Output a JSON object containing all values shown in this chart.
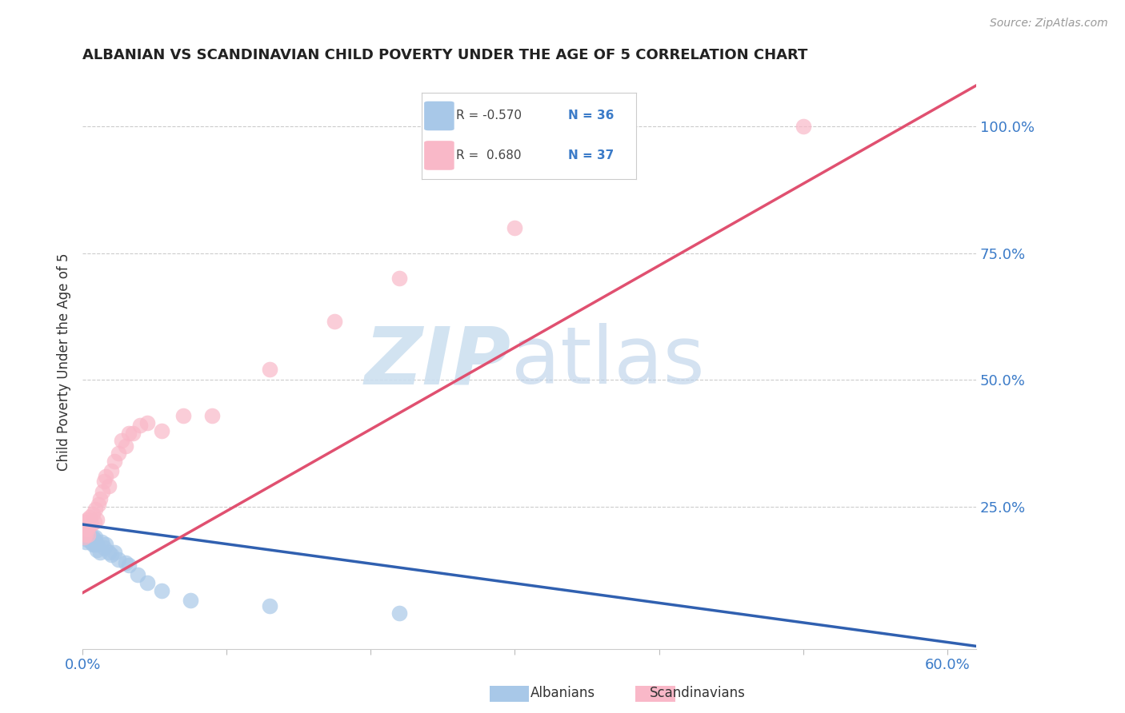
{
  "title": "ALBANIAN VS SCANDINAVIAN CHILD POVERTY UNDER THE AGE OF 5 CORRELATION CHART",
  "source": "Source: ZipAtlas.com",
  "ylabel": "Child Poverty Under the Age of 5",
  "albanian_color": "#a8c8e8",
  "scandinavian_color": "#f9b8c8",
  "albanian_line_color": "#3060b0",
  "scandinavian_line_color": "#e05070",
  "background_color": "#ffffff",
  "grid_color": "#cccccc",
  "xlim": [
    0.0,
    0.62
  ],
  "ylim": [
    -0.03,
    1.1
  ],
  "albanian_x": [
    0.001,
    0.001,
    0.002,
    0.002,
    0.003,
    0.003,
    0.004,
    0.004,
    0.005,
    0.005,
    0.006,
    0.006,
    0.007,
    0.007,
    0.008,
    0.008,
    0.009,
    0.009,
    0.01,
    0.01,
    0.012,
    0.013,
    0.015,
    0.016,
    0.018,
    0.02,
    0.022,
    0.025,
    0.03,
    0.032,
    0.038,
    0.045,
    0.055,
    0.075,
    0.13,
    0.22
  ],
  "albanian_y": [
    0.195,
    0.205,
    0.18,
    0.2,
    0.195,
    0.185,
    0.19,
    0.2,
    0.19,
    0.185,
    0.185,
    0.18,
    0.19,
    0.175,
    0.185,
    0.175,
    0.18,
    0.19,
    0.175,
    0.165,
    0.16,
    0.18,
    0.17,
    0.175,
    0.16,
    0.155,
    0.16,
    0.145,
    0.14,
    0.135,
    0.115,
    0.1,
    0.085,
    0.065,
    0.055,
    0.04
  ],
  "scandinavian_x": [
    0.001,
    0.001,
    0.002,
    0.002,
    0.003,
    0.003,
    0.004,
    0.004,
    0.005,
    0.006,
    0.007,
    0.008,
    0.009,
    0.01,
    0.011,
    0.012,
    0.014,
    0.015,
    0.016,
    0.018,
    0.02,
    0.022,
    0.025,
    0.027,
    0.03,
    0.032,
    0.035,
    0.04,
    0.045,
    0.055,
    0.07,
    0.09,
    0.13,
    0.175,
    0.22,
    0.3,
    0.5
  ],
  "scandinavian_y": [
    0.19,
    0.21,
    0.195,
    0.22,
    0.205,
    0.225,
    0.195,
    0.21,
    0.23,
    0.215,
    0.235,
    0.22,
    0.245,
    0.225,
    0.255,
    0.265,
    0.28,
    0.3,
    0.31,
    0.29,
    0.32,
    0.34,
    0.355,
    0.38,
    0.37,
    0.395,
    0.395,
    0.41,
    0.415,
    0.4,
    0.43,
    0.43,
    0.52,
    0.615,
    0.7,
    0.8,
    1.0
  ],
  "albanian_trendline_x": [
    0.0,
    0.62
  ],
  "albanian_trendline_y": [
    0.215,
    -0.025
  ],
  "scandinavian_trendline_x": [
    0.0,
    0.62
  ],
  "scandinavian_trendline_y": [
    0.08,
    1.08
  ]
}
